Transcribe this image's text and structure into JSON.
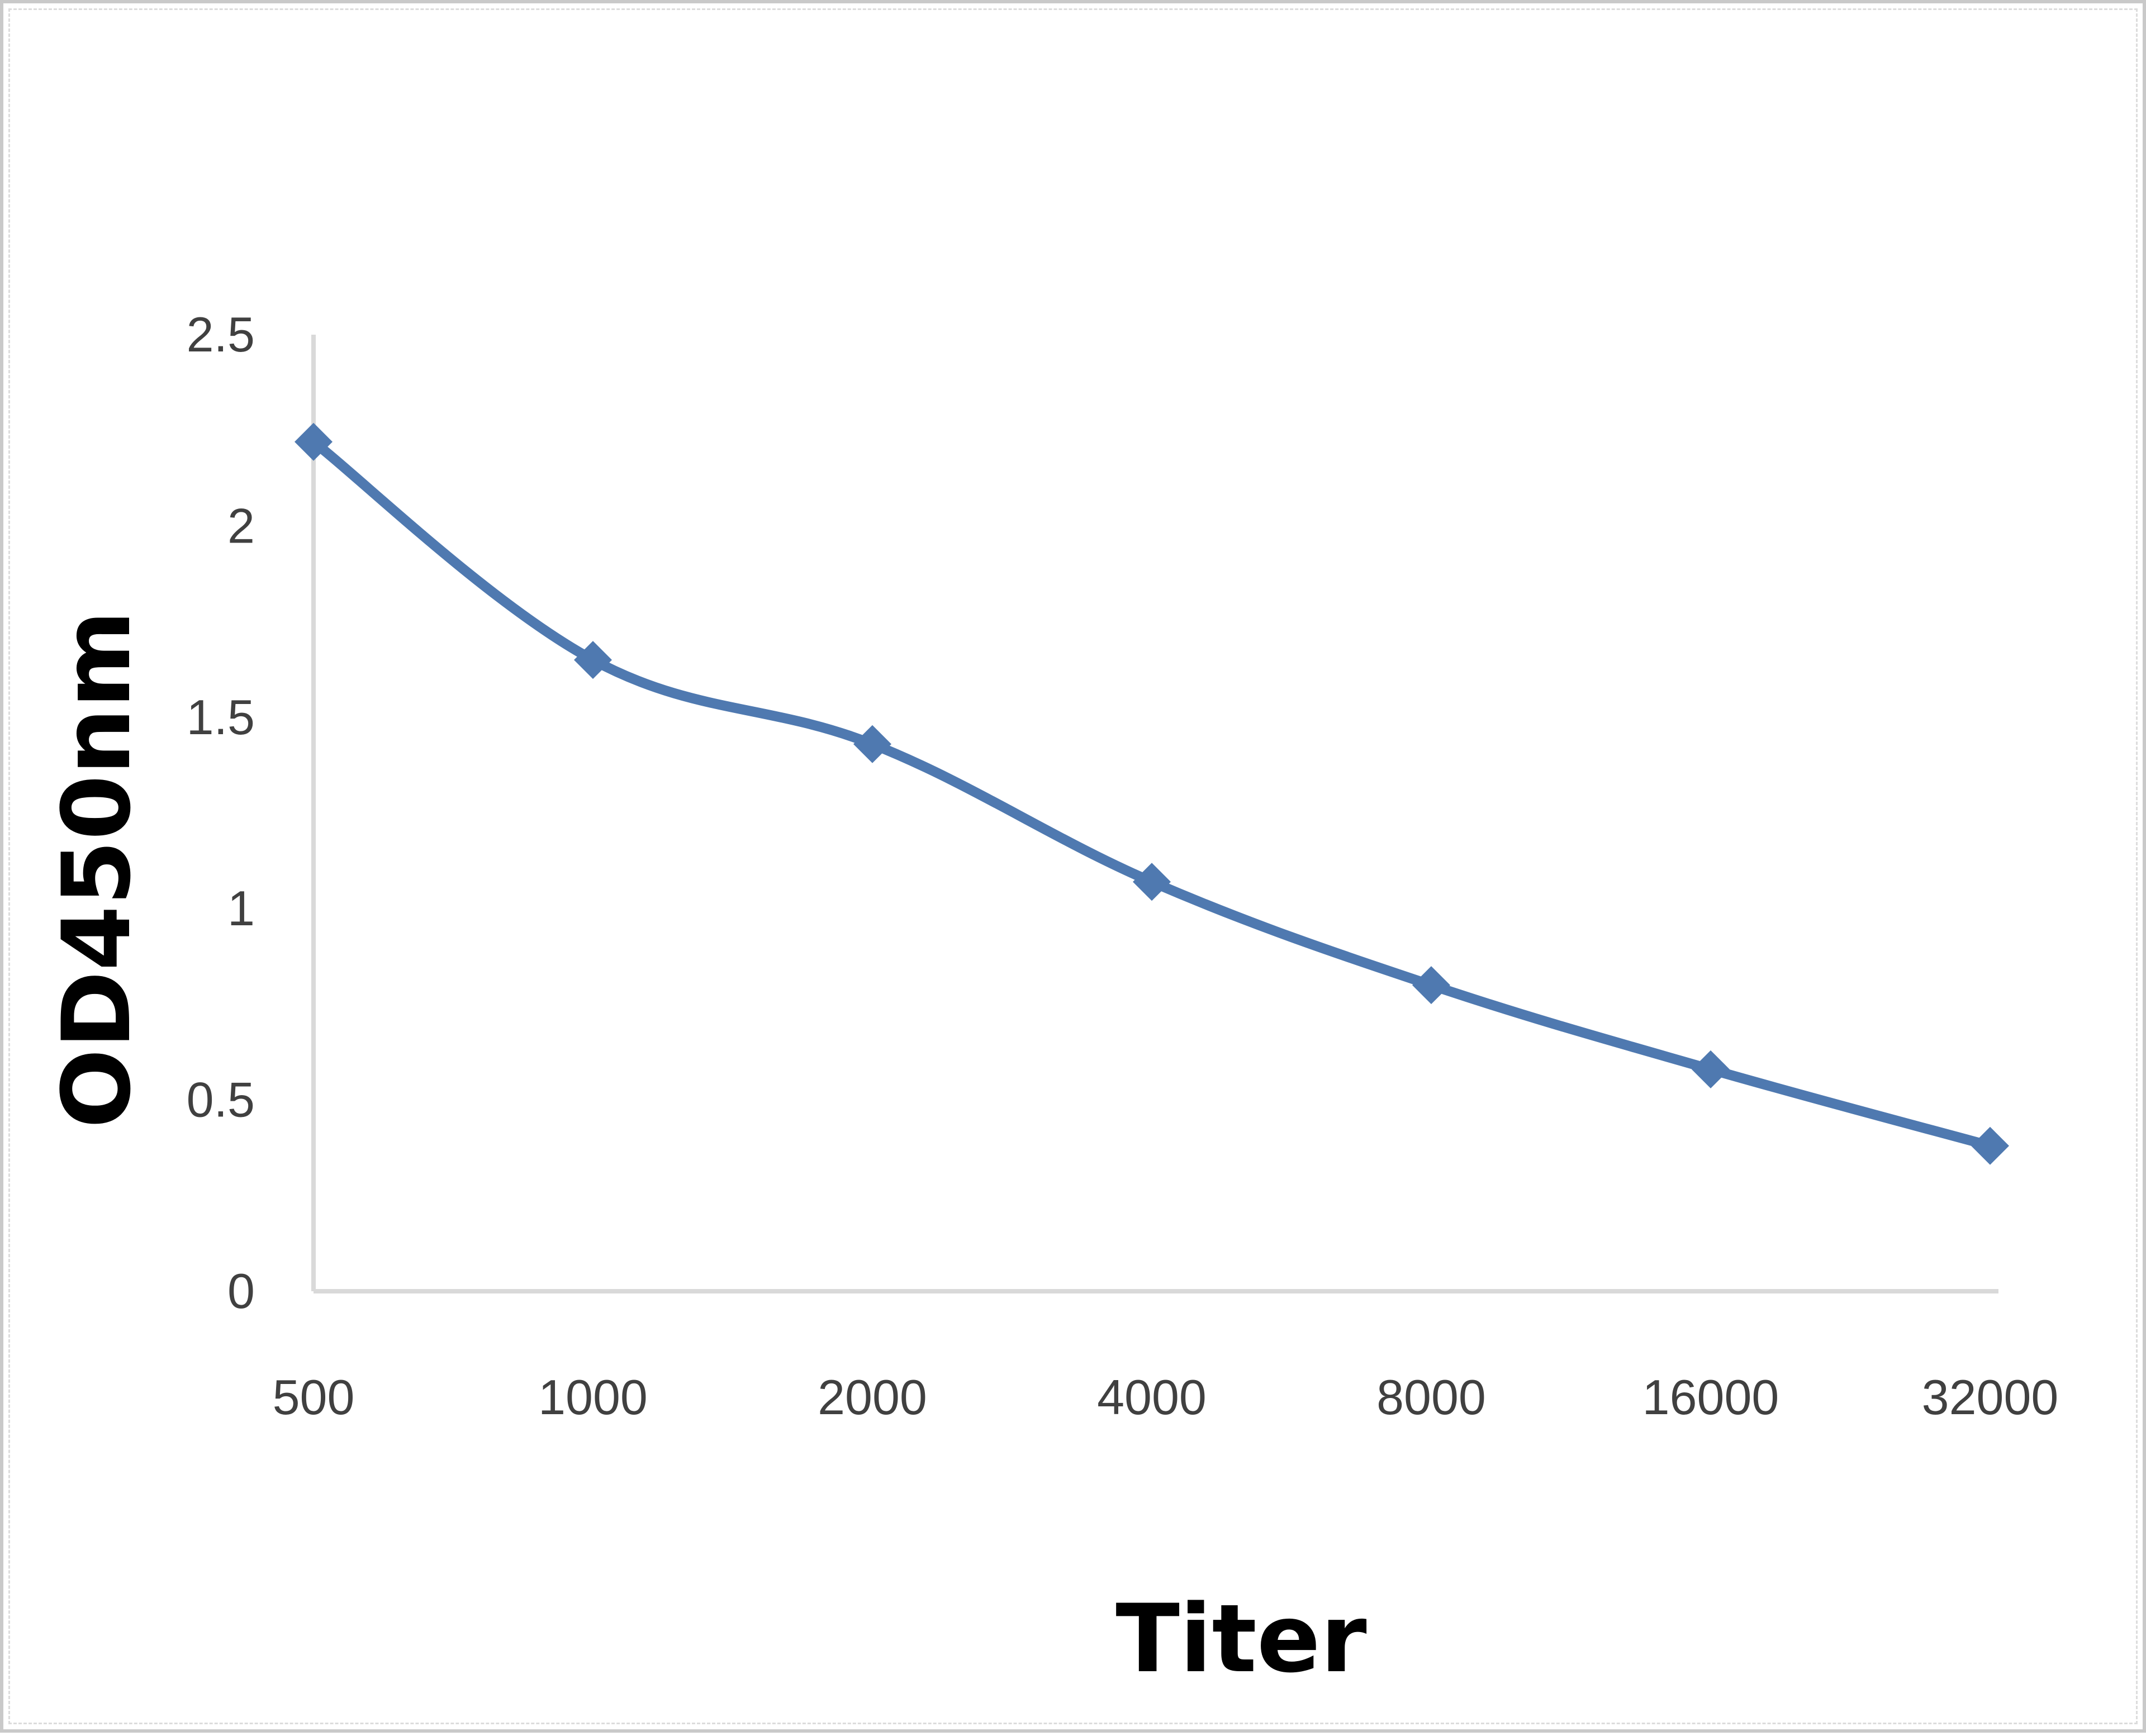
{
  "chart_data": {
    "type": "line",
    "title": "",
    "xlabel": "Titer",
    "ylabel": "OD450nm",
    "categories": [
      "500",
      "1000",
      "2000",
      "4000",
      "8000",
      "16000",
      "32000"
    ],
    "series": [
      {
        "values": [
          2.22,
          1.65,
          1.43,
          1.07,
          0.8,
          0.58,
          0.38
        ],
        "color": "#4f79b0",
        "marker": "diamond"
      }
    ],
    "ylim": [
      0,
      2.5
    ],
    "yticks": [
      "0",
      "0.5",
      "1",
      "1.5",
      "2",
      "2.5"
    ],
    "grid": false,
    "legend": "none",
    "axis_color": "#d9d9d9"
  }
}
